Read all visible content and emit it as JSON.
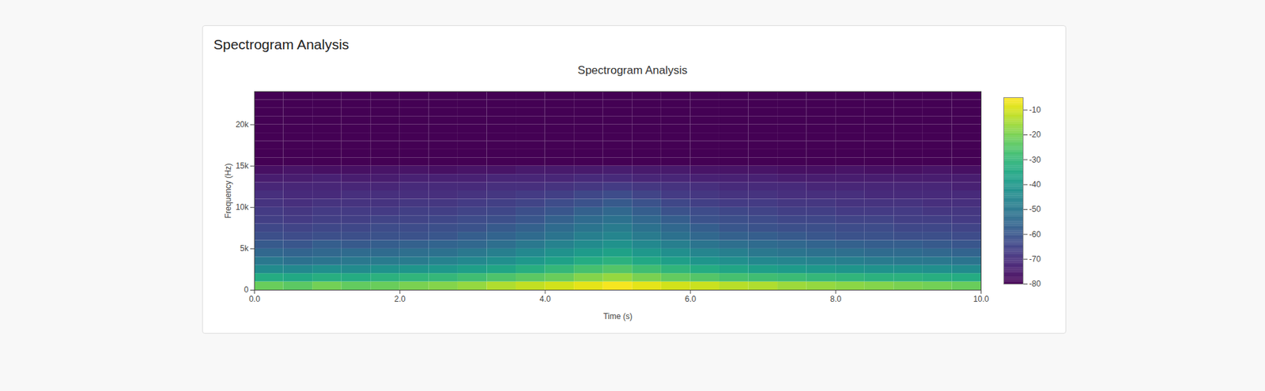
{
  "page": {
    "heading": "Spectrogram Analysis"
  },
  "chart_data": {
    "type": "heatmap",
    "title": "Spectrogram Analysis",
    "x_label": "Time (s)",
    "y_label": "Frequency (Hz)",
    "xlim": [
      0,
      10
    ],
    "xticks": [
      {
        "value": 0,
        "label": "0.0"
      },
      {
        "value": 2,
        "label": "2.0"
      },
      {
        "value": 4,
        "label": "4.0"
      },
      {
        "value": 6,
        "label": "6.0"
      },
      {
        "value": 8,
        "label": "8.0"
      },
      {
        "value": 10,
        "label": "10.0"
      }
    ],
    "ylim": [
      0,
      24000
    ],
    "yticks": [
      0,
      {
        "value": 5000,
        "label": "5k"
      },
      {
        "value": 10000,
        "label": "10k"
      },
      {
        "value": 15000,
        "label": "15k"
      },
      {
        "value": 20000,
        "label": "20k"
      }
    ],
    "color": "viridis",
    "x_bins": [
      0,
      0.4,
      0.8,
      1.2,
      1.6,
      2.0,
      2.4,
      2.8,
      3.2,
      3.6,
      4.0,
      4.4,
      4.8,
      5.2,
      5.6,
      6.0,
      6.4,
      6.8,
      7.2,
      7.6,
      8.0,
      8.4,
      8.8,
      9.2,
      9.6,
      10.0
    ],
    "y_bins": [
      0,
      1000,
      2000,
      3000,
      4000,
      5000,
      6000,
      7000,
      8000,
      9000,
      10000,
      11000,
      12000,
      13000,
      14000,
      15000,
      16000,
      17000,
      18000,
      19000,
      20000,
      21000,
      22000,
      23000,
      24000
    ],
    "z": [
      [
        -22,
        -24,
        -21,
        -23,
        -22,
        -20,
        -19,
        -17,
        -14,
        -12,
        -10,
        -8,
        -6,
        -8,
        -10,
        -11,
        -13,
        -14,
        -16,
        -17,
        -18,
        -19,
        -20,
        -21,
        -22
      ],
      [
        -34,
        -35,
        -33,
        -34,
        -32,
        -31,
        -30,
        -28,
        -26,
        -24,
        -22,
        -19,
        -17,
        -20,
        -23,
        -25,
        -27,
        -28,
        -29,
        -30,
        -31,
        -32,
        -32,
        -33,
        -34
      ],
      [
        -44,
        -45,
        -43,
        -44,
        -42,
        -41,
        -40,
        -38,
        -36,
        -33,
        -30,
        -27,
        -25,
        -28,
        -31,
        -34,
        -36,
        -38,
        -39,
        -40,
        -41,
        -42,
        -42,
        -43,
        -44
      ],
      [
        -50,
        -52,
        -51,
        -50,
        -49,
        -49,
        -47,
        -45,
        -43,
        -40,
        -37,
        -34,
        -32,
        -35,
        -38,
        -41,
        -43,
        -45,
        -46,
        -47,
        -48,
        -49,
        -50,
        -50,
        -51
      ],
      [
        -55,
        -56,
        -55,
        -54,
        -54,
        -53,
        -52,
        -50,
        -48,
        -45,
        -42,
        -39,
        -37,
        -40,
        -43,
        -46,
        -48,
        -50,
        -51,
        -52,
        -53,
        -54,
        -54,
        -55,
        -56
      ],
      [
        -59,
        -60,
        -58,
        -59,
        -58,
        -57,
        -56,
        -55,
        -53,
        -50,
        -47,
        -44,
        -42,
        -45,
        -48,
        -51,
        -53,
        -54,
        -55,
        -56,
        -57,
        -58,
        -58,
        -59,
        -60
      ],
      [
        -62,
        -63,
        -62,
        -62,
        -61,
        -61,
        -60,
        -58,
        -56,
        -54,
        -51,
        -48,
        -46,
        -49,
        -52,
        -55,
        -57,
        -58,
        -59,
        -60,
        -61,
        -61,
        -62,
        -62,
        -63
      ],
      [
        -64,
        -65,
        -64,
        -64,
        -63,
        -63,
        -62,
        -61,
        -59,
        -57,
        -54,
        -51,
        -49,
        -52,
        -55,
        -58,
        -60,
        -61,
        -62,
        -62,
        -63,
        -63,
        -64,
        -64,
        -65
      ],
      [
        -66,
        -67,
        -66,
        -66,
        -65,
        -65,
        -64,
        -63,
        -62,
        -60,
        -57,
        -54,
        -52,
        -55,
        -58,
        -61,
        -62,
        -63,
        -64,
        -64,
        -65,
        -65,
        -66,
        -66,
        -67
      ],
      [
        -67,
        -68,
        -67,
        -67,
        -67,
        -66,
        -66,
        -65,
        -64,
        -62,
        -60,
        -57,
        -55,
        -58,
        -61,
        -63,
        -64,
        -65,
        -66,
        -66,
        -67,
        -67,
        -67,
        -68,
        -68
      ],
      [
        -69,
        -70,
        -69,
        -69,
        -69,
        -68,
        -68,
        -67,
        -66,
        -65,
        -63,
        -61,
        -59,
        -61,
        -64,
        -66,
        -67,
        -67,
        -68,
        -68,
        -69,
        -69,
        -69,
        -70,
        -70
      ],
      [
        -70,
        -71,
        -71,
        -70,
        -70,
        -70,
        -70,
        -69,
        -68,
        -67,
        -66,
        -64,
        -63,
        -65,
        -67,
        -68,
        -69,
        -69,
        -70,
        -70,
        -70,
        -71,
        -71,
        -71,
        -71
      ],
      [
        -72,
        -72,
        -72,
        -72,
        -72,
        -71,
        -71,
        -71,
        -70,
        -70,
        -69,
        -68,
        -67,
        -68,
        -69,
        -70,
        -71,
        -71,
        -71,
        -72,
        -72,
        -72,
        -72,
        -72,
        -73
      ],
      [
        -74,
        -74,
        -73,
        -74,
        -74,
        -73,
        -73,
        -73,
        -72,
        -72,
        -72,
        -71,
        -71,
        -72,
        -72,
        -73,
        -73,
        -73,
        -74,
        -74,
        -74,
        -74,
        -74,
        -74,
        -74
      ],
      [
        -77,
        -76,
        -77,
        -77,
        -76,
        -76,
        -77,
        -76,
        -76,
        -75,
        -75,
        -75,
        -74,
        -75,
        -75,
        -76,
        -76,
        -76,
        -77,
        -77,
        -76,
        -77,
        -77,
        -76,
        -77
      ],
      [
        -80,
        -80,
        -80,
        -80,
        -80,
        -80,
        -80,
        -80,
        -80,
        -80,
        -80,
        -80,
        -80,
        -80,
        -80,
        -80,
        -80,
        -80,
        -80,
        -80,
        -80,
        -80,
        -80,
        -80,
        -80
      ],
      [
        -80,
        -80,
        -80,
        -80,
        -80,
        -80,
        -80,
        -80,
        -80,
        -80,
        -80,
        -80,
        -80,
        -80,
        -80,
        -80,
        -80,
        -80,
        -80,
        -80,
        -80,
        -80,
        -80,
        -80,
        -80
      ],
      [
        -80,
        -80,
        -80,
        -80,
        -80,
        -80,
        -80,
        -80,
        -80,
        -80,
        -80,
        -80,
        -80,
        -80,
        -80,
        -80,
        -80,
        -80,
        -80,
        -80,
        -80,
        -80,
        -80,
        -80,
        -80
      ],
      [
        -80,
        -80,
        -80,
        -80,
        -80,
        -80,
        -80,
        -80,
        -80,
        -80,
        -80,
        -80,
        -80,
        -80,
        -80,
        -80,
        -80,
        -80,
        -80,
        -80,
        -80,
        -80,
        -80,
        -80,
        -80
      ],
      [
        -80,
        -80,
        -80,
        -80,
        -80,
        -80,
        -80,
        -80,
        -80,
        -80,
        -80,
        -80,
        -80,
        -80,
        -80,
        -80,
        -80,
        -80,
        -80,
        -80,
        -80,
        -80,
        -80,
        -80,
        -80
      ],
      [
        -80,
        -80,
        -80,
        -80,
        -80,
        -80,
        -80,
        -80,
        -80,
        -80,
        -80,
        -80,
        -80,
        -80,
        -80,
        -80,
        -80,
        -80,
        -80,
        -80,
        -80,
        -80,
        -80,
        -80,
        -80
      ],
      [
        -80,
        -80,
        -80,
        -80,
        -80,
        -80,
        -80,
        -80,
        -80,
        -80,
        -80,
        -80,
        -80,
        -80,
        -80,
        -80,
        -80,
        -80,
        -80,
        -80,
        -80,
        -80,
        -80,
        -80,
        -80
      ],
      [
        -80,
        -80,
        -80,
        -80,
        -80,
        -80,
        -80,
        -80,
        -80,
        -80,
        -80,
        -80,
        -80,
        -80,
        -80,
        -80,
        -80,
        -80,
        -80,
        -80,
        -80,
        -80,
        -80,
        -80,
        -80
      ],
      [
        -80,
        -80,
        -80,
        -80,
        -80,
        -80,
        -80,
        -80,
        -80,
        -80,
        -80,
        -80,
        -80,
        -80,
        -80,
        -80,
        -80,
        -80,
        -80,
        -80,
        -80,
        -80,
        -80,
        -80,
        -80
      ]
    ],
    "colorbar": {
      "range": [
        -80,
        -5
      ],
      "ticks": [
        -10,
        -20,
        -30,
        -40,
        -50,
        -60,
        -70,
        -80
      ]
    }
  }
}
